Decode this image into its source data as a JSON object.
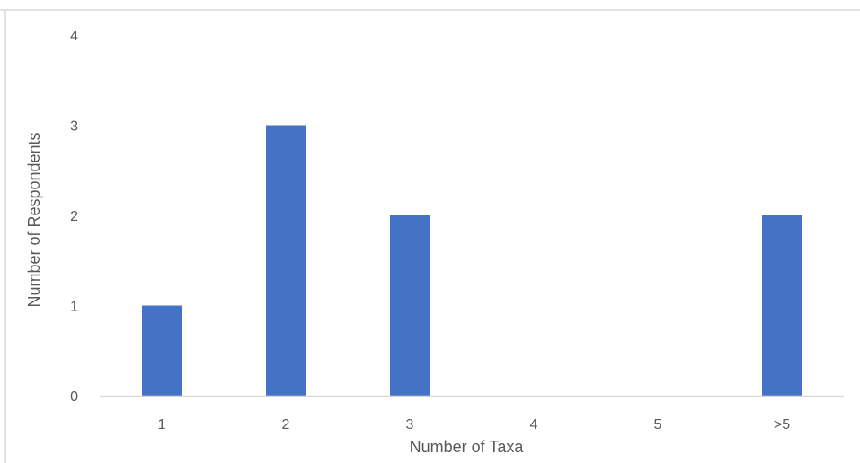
{
  "chart_data": {
    "type": "bar",
    "title": "",
    "xlabel": "Number of Taxa",
    "ylabel": "Number of Respondents",
    "categories": [
      "1",
      "2",
      "3",
      "4",
      "5",
      ">5"
    ],
    "values": [
      1,
      3,
      2,
      0,
      0,
      2
    ],
    "ylim": [
      0,
      4
    ],
    "yticks": [
      "0",
      "1",
      "2",
      "3",
      "4"
    ],
    "grid": false,
    "legend": "none",
    "colors": {
      "bar": "#4472C4",
      "axis": "#D9D9D9",
      "text": "#595959",
      "frame": "#D9D9D9"
    }
  }
}
